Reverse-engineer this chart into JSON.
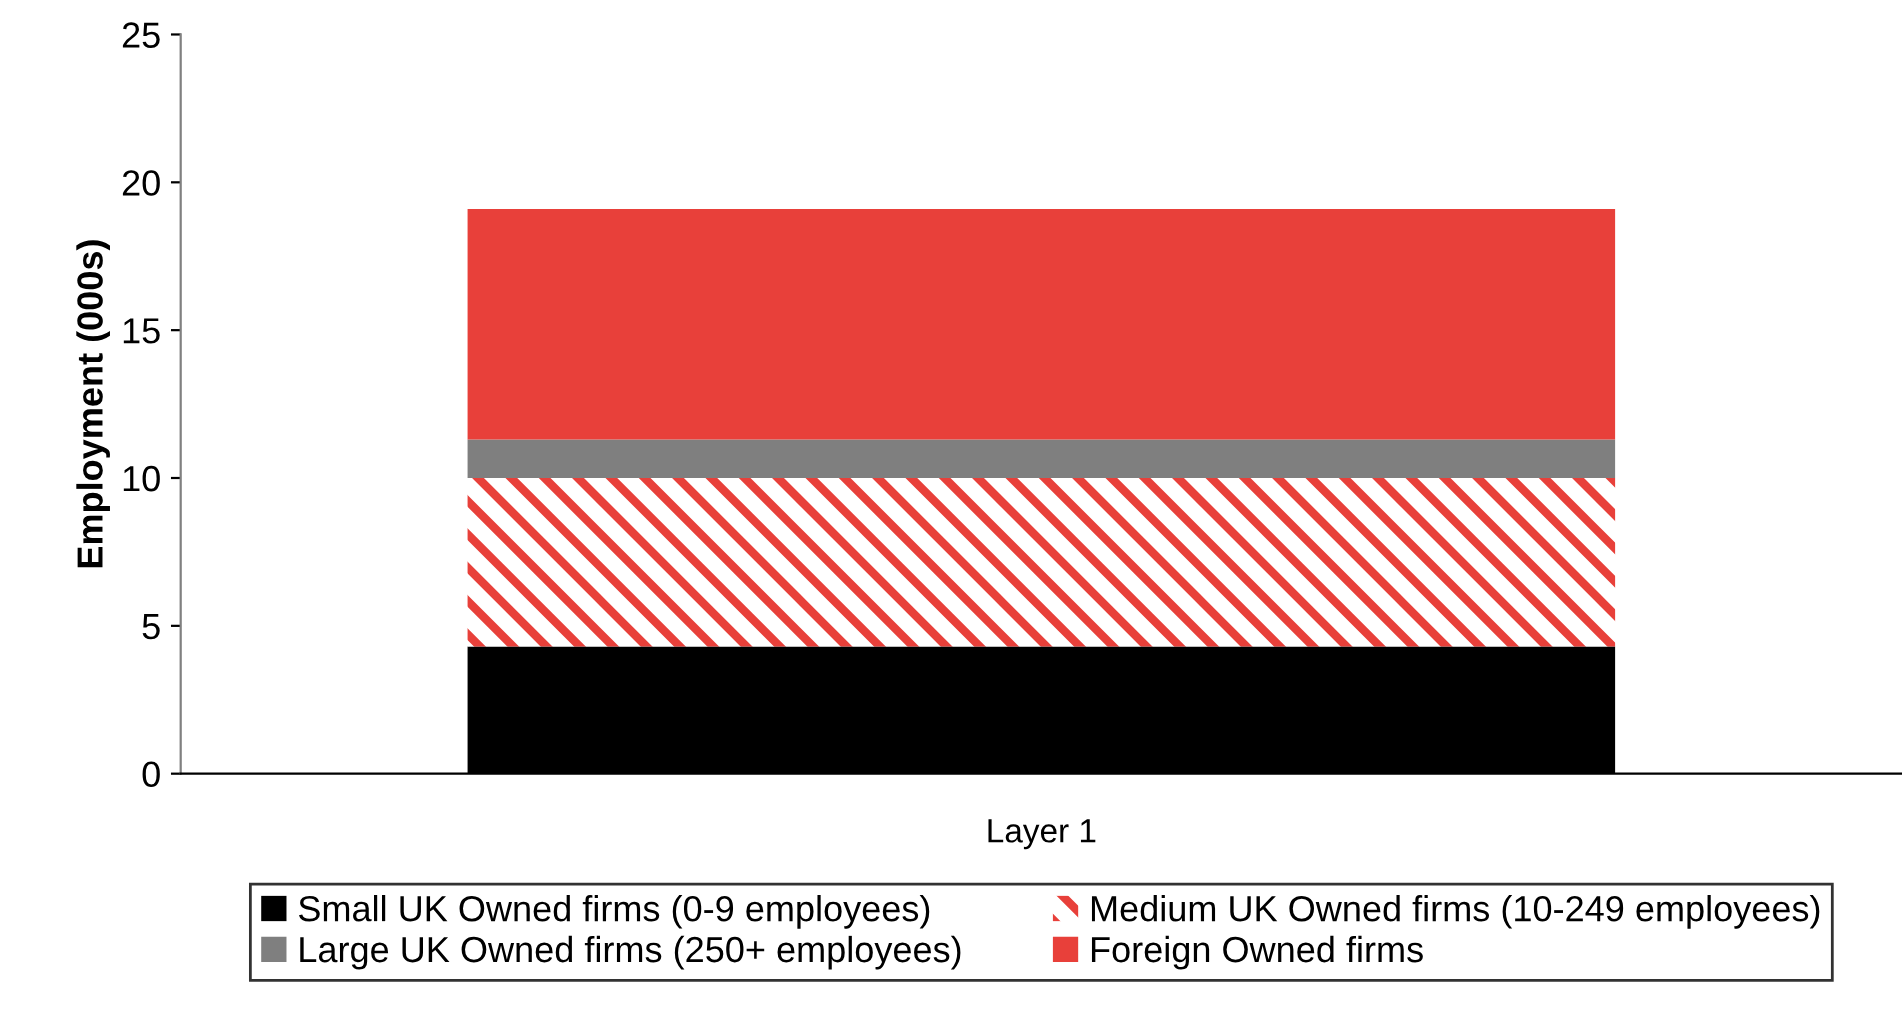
{
  "chart_data": {
    "type": "bar",
    "stacked": true,
    "categories": [
      "Layer 1"
    ],
    "ylabel": "Employment (000s)",
    "ylim": [
      0,
      25
    ],
    "yticks": [
      0,
      5,
      10,
      15,
      20,
      25
    ],
    "grid": false,
    "legend": "bottom",
    "series": [
      {
        "name": "Small UK Owned firms (0-9 employees)",
        "color": "#000000",
        "values": [
          4.3
        ]
      },
      {
        "name": "Medium UK Owned firms (10-249 employees)",
        "color": "#e8403a",
        "values": [
          5.7
        ]
      },
      {
        "name": "Large UK Owned firms (250+ employees)",
        "color": "#7f7f7f",
        "values": [
          1.3
        ]
      },
      {
        "name": "Foreign Owned firms",
        "color": "#e8403a",
        "values": [
          7.8
        ]
      }
    ]
  }
}
